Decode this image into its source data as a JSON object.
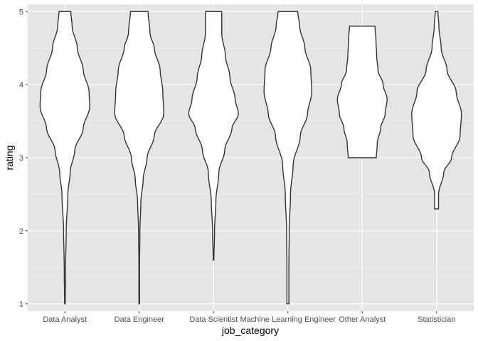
{
  "chart_data": {
    "type": "violin",
    "xlabel": "job_category",
    "ylabel": "rating",
    "ylim": [
      0.9,
      5.1
    ],
    "yticks": [
      1,
      2,
      3,
      4,
      5
    ],
    "grid": true,
    "colors": {
      "panel": "#e5e5e5",
      "grid": "#ffffff",
      "violin_fill": "#ffffff",
      "violin_stroke": "#333333"
    },
    "categories": [
      "Data Analyst",
      "Data Engineer",
      "Data Scientist",
      "Machine Learning Engineer",
      "Other Analyst",
      "Statistician"
    ],
    "violins": [
      {
        "category": "Data Analyst",
        "min": 1.0,
        "max": 5.0,
        "profile": [
          [
            1.0,
            0.01
          ],
          [
            1.5,
            0.02
          ],
          [
            2.0,
            0.04
          ],
          [
            2.5,
            0.09
          ],
          [
            2.8,
            0.16
          ],
          [
            3.1,
            0.3
          ],
          [
            3.4,
            0.56
          ],
          [
            3.7,
            0.76
          ],
          [
            3.9,
            0.74
          ],
          [
            4.2,
            0.56
          ],
          [
            4.5,
            0.38
          ],
          [
            4.8,
            0.22
          ],
          [
            5.0,
            0.18
          ]
        ]
      },
      {
        "category": "Data Engineer",
        "min": 1.0,
        "max": 5.0,
        "profile": [
          [
            1.0,
            0.01
          ],
          [
            1.5,
            0.01
          ],
          [
            2.0,
            0.02
          ],
          [
            2.4,
            0.05
          ],
          [
            2.7,
            0.12
          ],
          [
            3.0,
            0.24
          ],
          [
            3.3,
            0.46
          ],
          [
            3.6,
            0.75
          ],
          [
            3.9,
            0.72
          ],
          [
            4.2,
            0.64
          ],
          [
            4.5,
            0.46
          ],
          [
            4.7,
            0.33
          ],
          [
            5.0,
            0.27
          ]
        ]
      },
      {
        "category": "Data Scientist",
        "min": 1.6,
        "max": 5.0,
        "profile": [
          [
            1.6,
            0.01
          ],
          [
            2.0,
            0.03
          ],
          [
            2.4,
            0.07
          ],
          [
            2.8,
            0.16
          ],
          [
            3.1,
            0.34
          ],
          [
            3.4,
            0.56
          ],
          [
            3.6,
            0.76
          ],
          [
            3.8,
            0.66
          ],
          [
            4.1,
            0.5
          ],
          [
            4.4,
            0.36
          ],
          [
            4.7,
            0.25
          ],
          [
            5.0,
            0.25
          ]
        ]
      },
      {
        "category": "Machine Learning Engineer",
        "min": 1.0,
        "max": 5.0,
        "profile": [
          [
            1.0,
            0.03
          ],
          [
            1.5,
            0.03
          ],
          [
            2.0,
            0.04
          ],
          [
            2.5,
            0.08
          ],
          [
            2.9,
            0.16
          ],
          [
            3.3,
            0.38
          ],
          [
            3.6,
            0.6
          ],
          [
            3.9,
            0.73
          ],
          [
            4.2,
            0.7
          ],
          [
            4.5,
            0.52
          ],
          [
            4.8,
            0.36
          ],
          [
            5.0,
            0.3
          ]
        ]
      },
      {
        "category": "Other Analyst",
        "min": 3.0,
        "max": 4.8,
        "profile": [
          [
            3.0,
            0.43
          ],
          [
            3.2,
            0.46
          ],
          [
            3.4,
            0.56
          ],
          [
            3.6,
            0.7
          ],
          [
            3.8,
            0.76
          ],
          [
            4.0,
            0.64
          ],
          [
            4.2,
            0.48
          ],
          [
            4.4,
            0.44
          ],
          [
            4.6,
            0.42
          ],
          [
            4.8,
            0.39
          ]
        ]
      },
      {
        "category": "Statistician",
        "min": 2.3,
        "max": 5.0,
        "profile": [
          [
            2.3,
            0.06
          ],
          [
            2.5,
            0.06
          ],
          [
            2.8,
            0.22
          ],
          [
            3.0,
            0.46
          ],
          [
            3.3,
            0.72
          ],
          [
            3.6,
            0.76
          ],
          [
            3.9,
            0.6
          ],
          [
            4.2,
            0.32
          ],
          [
            4.5,
            0.14
          ],
          [
            4.8,
            0.07
          ],
          [
            5.0,
            0.04
          ]
        ]
      }
    ]
  }
}
